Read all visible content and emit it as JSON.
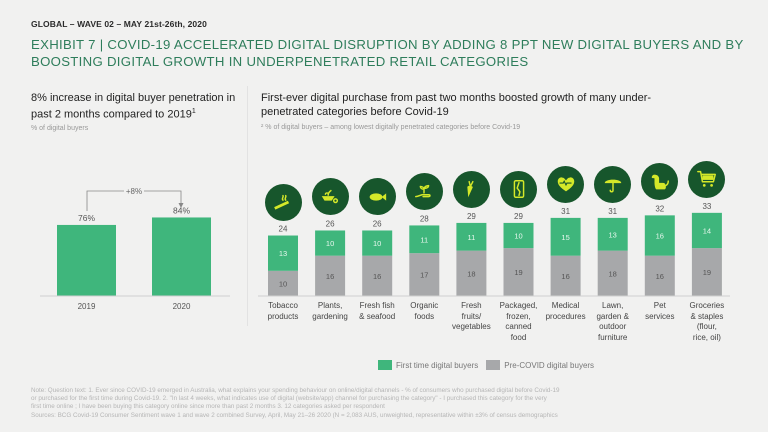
{
  "header": {
    "kicker": "GLOBAL – WAVE  02 – MAY 21st-26th, 2020",
    "title": "EXHIBIT 7 | COVID-19 ACCELERATED DIGITAL DISRUPTION BY ADDING 8 PPT NEW DIGITAL BUYERS AND BY BOOSTING  DIGITAL GROWTH IN UNDERPENETRATED RETAIL CATEGORIES"
  },
  "left_panel": {
    "heading": "8% increase in digital buyer penetration in past 2 months compared to 2019",
    "heading_sup": "1",
    "subtitle": "% of digital buyers",
    "delta_label": "+8%"
  },
  "right_panel": {
    "heading": "First-ever digital purchase from past two months boosted growth of many under-penetrated categories before Covid-19",
    "subtitle": "² % of digital buyers – among lowest digitally penetrated categories before Covid-19"
  },
  "colors": {
    "green": "#3fb67c",
    "grey": "#a7a8aa",
    "icon_bg": "#17562c",
    "icon_fg": "#d4e829",
    "title": "#2e7d5b"
  },
  "chart_data": [
    {
      "type": "bar",
      "title": "8% increase in digital buyer penetration in past 2 months compared to 2019",
      "ylabel": "% of digital buyers",
      "categories": [
        "2019",
        "2020"
      ],
      "values": [
        76,
        84
      ],
      "value_labels": [
        "76%",
        "84%"
      ],
      "annotation": "+8%",
      "ylim": [
        0,
        100
      ]
    },
    {
      "type": "bar",
      "stacked": true,
      "title": "First-ever digital purchase from past two months boosted growth of many under-penetrated categories before Covid-19",
      "ylabel": "% of digital buyers",
      "categories": [
        "Tobacco products",
        "Plants, gardening",
        "Fresh fish & seafood",
        "Organic foods",
        "Fresh fruits/ vegetables",
        "Packaged, frozen, canned food",
        "Medical procedures",
        "Lawn, garden & outdoor furniture",
        "Pet services",
        "Groceries & staples (flour, rice, oil)"
      ],
      "category_lines": [
        [
          "Tobacco",
          "products"
        ],
        [
          "Plants,",
          "gardening"
        ],
        [
          "Fresh fish",
          "& seafood"
        ],
        [
          "Organic",
          "foods"
        ],
        [
          "Fresh",
          "fruits/",
          "vegetables"
        ],
        [
          "Packaged,",
          "frozen,",
          "canned",
          "food"
        ],
        [
          "Medical",
          "procedures"
        ],
        [
          "Lawn,",
          "garden &",
          "outdoor",
          "furniture"
        ],
        [
          "Pet",
          "services"
        ],
        [
          "Groceries",
          "& staples",
          "(flour,",
          "rice, oil)"
        ]
      ],
      "icons": [
        "cigarette-icon",
        "wheelbarrow-icon",
        "fish-icon",
        "hand-plant-icon",
        "carrot-icon",
        "can-icon",
        "heart-pulse-icon",
        "umbrella-icon",
        "dog-icon",
        "shopping-cart-icon"
      ],
      "series": [
        {
          "name": "Pre-COVID digital buyers",
          "color": "#a7a8aa",
          "values": [
            10,
            16,
            16,
            17,
            18,
            19,
            16,
            18,
            16,
            19
          ]
        },
        {
          "name": "First time digital buyers",
          "color": "#3fb67c",
          "values": [
            13,
            10,
            10,
            11,
            11,
            10,
            15,
            13,
            16,
            14
          ]
        }
      ],
      "totals": [
        24,
        26,
        26,
        28,
        29,
        29,
        31,
        31,
        32,
        33
      ],
      "legend": [
        "First time digital buyers",
        "Pre-COVID digital buyers"
      ],
      "legend_position": "bottom",
      "ylim": [
        0,
        35
      ]
    }
  ],
  "legend": {
    "first_time": "First time digital buyers",
    "pre_covid": "Pre-COVID digital buyers"
  },
  "footnote": {
    "lines": [
      "Note: Question text: 1. Ever since COVID-19 emerged in Australia, what explains your spending behaviour on online/digital channels - % of consumers who purchased digital before Covid-19",
      "or purchased for the first time during Covid-19. 2. \"In last 4 weeks, what indicates use of digital (website/app) channel for purchasing the category\" - I purchased this category for the very",
      "first time online ; I have been buying this category online since more than past 2 months 3. 12 categories asked per respondent",
      "Sources: BCG Covid-19 Consumer Sentiment wave 1 and wave 2 combined Survey, April, May 21–26 2020 (N = 2,083 AUS, unweighted, representative within ±3% of census demographics"
    ]
  }
}
